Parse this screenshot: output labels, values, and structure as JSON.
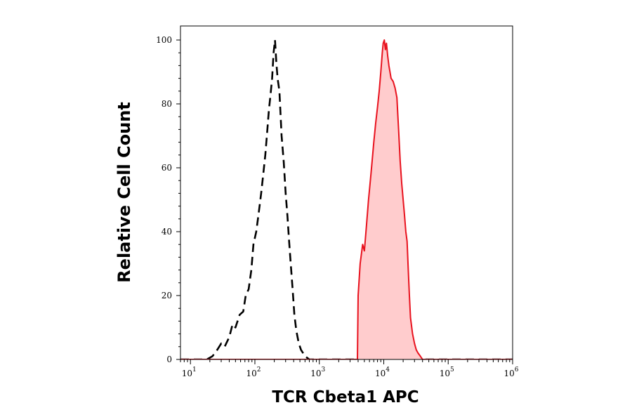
{
  "chart_data": {
    "type": "area",
    "title": "",
    "xlabel": "TCR Cbeta1 APC",
    "ylabel": "Relative Cell Count",
    "x_scale": "log",
    "xlim": [
      7,
      1000000
    ],
    "ylim": [
      0,
      100
    ],
    "grid": false,
    "legend": "none",
    "x_ticks": [
      {
        "base": "10",
        "exp": "1"
      },
      {
        "base": "10",
        "exp": "2"
      },
      {
        "base": "10",
        "exp": "3"
      },
      {
        "base": "10",
        "exp": "4"
      },
      {
        "base": "10",
        "exp": "5"
      },
      {
        "base": "10",
        "exp": "6"
      }
    ],
    "y_ticks": [
      "0",
      "20",
      "40",
      "60",
      "80",
      "100"
    ],
    "series": [
      {
        "style": "dashed",
        "color": "#000000",
        "fill": "none",
        "points": [
          [
            7,
            0
          ],
          [
            18,
            0
          ],
          [
            22,
            1
          ],
          [
            26,
            3
          ],
          [
            30,
            5
          ],
          [
            34,
            4
          ],
          [
            40,
            7
          ],
          [
            45,
            11
          ],
          [
            50,
            10
          ],
          [
            58,
            14
          ],
          [
            66,
            15
          ],
          [
            72,
            20
          ],
          [
            80,
            22
          ],
          [
            88,
            28
          ],
          [
            95,
            36
          ],
          [
            105,
            40
          ],
          [
            115,
            46
          ],
          [
            125,
            52
          ],
          [
            135,
            58
          ],
          [
            145,
            64
          ],
          [
            155,
            71
          ],
          [
            165,
            78
          ],
          [
            175,
            83
          ],
          [
            185,
            88
          ],
          [
            195,
            96
          ],
          [
            205,
            100
          ],
          [
            215,
            93
          ],
          [
            225,
            88
          ],
          [
            240,
            84
          ],
          [
            260,
            70
          ],
          [
            280,
            62
          ],
          [
            300,
            52
          ],
          [
            320,
            45
          ],
          [
            340,
            37
          ],
          [
            360,
            30
          ],
          [
            385,
            22
          ],
          [
            410,
            14
          ],
          [
            440,
            9
          ],
          [
            480,
            5
          ],
          [
            520,
            3
          ],
          [
            560,
            2
          ],
          [
            600,
            1
          ],
          [
            700,
            0
          ],
          [
            1000000,
            0
          ]
        ]
      },
      {
        "style": "solid",
        "color": "#e8121e",
        "fill": "#ffcccd",
        "points": [
          [
            7,
            0
          ],
          [
            3900,
            0
          ],
          [
            4000,
            20
          ],
          [
            4300,
            30
          ],
          [
            4700,
            36
          ],
          [
            5000,
            34
          ],
          [
            5400,
            42
          ],
          [
            5800,
            50
          ],
          [
            6200,
            56
          ],
          [
            6600,
            62
          ],
          [
            7000,
            68
          ],
          [
            7500,
            74
          ],
          [
            8000,
            79
          ],
          [
            8500,
            84
          ],
          [
            9000,
            90
          ],
          [
            9500,
            96
          ],
          [
            9800,
            99
          ],
          [
            10200,
            100
          ],
          [
            10600,
            97
          ],
          [
            11000,
            99
          ],
          [
            11500,
            95
          ],
          [
            12000,
            92
          ],
          [
            13000,
            88
          ],
          [
            14000,
            87
          ],
          [
            15000,
            85
          ],
          [
            16000,
            82
          ],
          [
            17000,
            72
          ],
          [
            18000,
            62
          ],
          [
            19000,
            55
          ],
          [
            20000,
            50
          ],
          [
            21000,
            45
          ],
          [
            22000,
            40
          ],
          [
            23000,
            37
          ],
          [
            24000,
            28
          ],
          [
            25000,
            20
          ],
          [
            26000,
            13
          ],
          [
            28000,
            8
          ],
          [
            30000,
            5
          ],
          [
            32000,
            3
          ],
          [
            34000,
            2
          ],
          [
            37000,
            1
          ],
          [
            40000,
            0
          ],
          [
            1000000,
            0
          ]
        ]
      }
    ]
  }
}
